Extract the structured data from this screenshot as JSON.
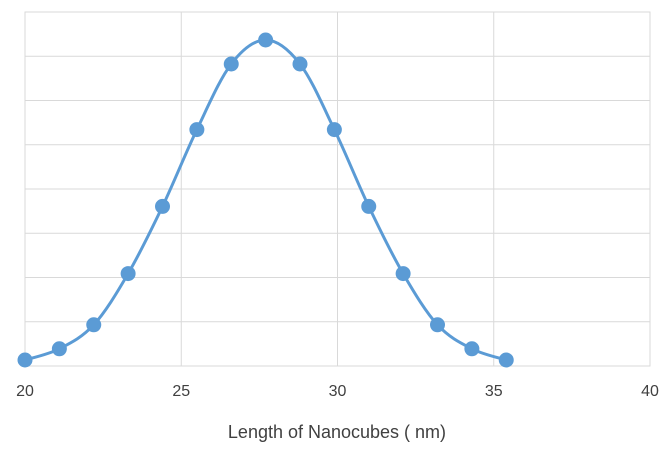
{
  "chart_data": {
    "type": "scatter",
    "title": "",
    "xlabel": "Length of Nanocubes ( nm)",
    "ylabel": "",
    "xlim": [
      20,
      40
    ],
    "ylim": [
      0,
      1.0
    ],
    "x_ticks": [
      20,
      25,
      30,
      35,
      40
    ],
    "y_gridlines": 8,
    "grid": true,
    "legend": "none",
    "series": [
      {
        "color": "#5b9bd5",
        "smooth_line": true,
        "x": [
          20.0,
          21.1,
          22.2,
          23.3,
          24.4,
          25.5,
          26.6,
          27.7,
          28.8,
          29.9,
          31.0,
          32.1,
          33.2,
          34.3,
          35.4
        ],
        "y": [
          0.0,
          0.035,
          0.11,
          0.27,
          0.48,
          0.72,
          0.925,
          1.0,
          0.925,
          0.72,
          0.48,
          0.27,
          0.11,
          0.035,
          0.0
        ]
      }
    ]
  }
}
